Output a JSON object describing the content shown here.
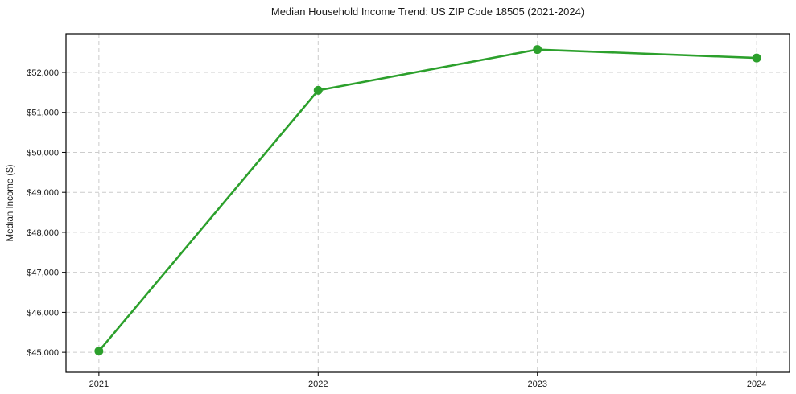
{
  "chart_data": {
    "type": "line",
    "title": "Median Household Income Trend: US ZIP Code 18505 (2021-2024)",
    "xlabel": "",
    "ylabel": "Median Income ($)",
    "x": [
      2021,
      2022,
      2023,
      2024
    ],
    "values": [
      45030,
      51550,
      52570,
      52360
    ],
    "series": [
      {
        "name": "Median Household Income",
        "values": [
          45030,
          51550,
          52570,
          52360
        ]
      }
    ],
    "x_tick_labels": [
      "2021",
      "2022",
      "2023",
      "2024"
    ],
    "y_ticks": [
      45000,
      46000,
      47000,
      48000,
      49000,
      50000,
      51000,
      52000
    ],
    "y_tick_labels": [
      "$45,000",
      "$46,000",
      "$47,000",
      "$48,000",
      "$49,000",
      "$50,000",
      "$51,000",
      "$52,000"
    ],
    "xlim": [
      2020.85,
      2024.15
    ],
    "ylim": [
      44500,
      52965
    ],
    "grid": true,
    "grid_style": "dashed",
    "legend": null,
    "colors": {
      "line": "#2ca02c",
      "marker": "#2ca02c",
      "grid": "#cccccc",
      "spine": "#000000",
      "text": "#1a1a1a",
      "background": "#ffffff"
    }
  }
}
